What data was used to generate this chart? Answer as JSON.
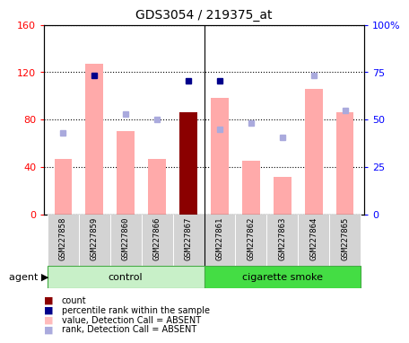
{
  "title": "GDS3054 / 219375_at",
  "samples": [
    "GSM227858",
    "GSM227859",
    "GSM227860",
    "GSM227866",
    "GSM227867",
    "GSM227861",
    "GSM227862",
    "GSM227863",
    "GSM227864",
    "GSM227865"
  ],
  "bar_values": [
    47,
    127,
    70,
    47,
    86,
    98,
    45,
    32,
    106,
    86
  ],
  "bar_colors": [
    "#ffaaaa",
    "#ffaaaa",
    "#ffaaaa",
    "#ffaaaa",
    "#8b0000",
    "#ffaaaa",
    "#ffaaaa",
    "#ffaaaa",
    "#ffaaaa",
    "#ffaaaa"
  ],
  "rank_dots": [
    null,
    117,
    null,
    null,
    113,
    113,
    null,
    null,
    null,
    null
  ],
  "rank_dot_color": "#00008b",
  "absent_ranks": [
    69,
    null,
    85,
    80,
    null,
    72,
    77,
    65,
    117,
    88
  ],
  "absent_rank_color": "#aaaadd",
  "ylim_left": [
    0,
    160
  ],
  "ylim_right": [
    0,
    100
  ],
  "yticks_left": [
    0,
    40,
    80,
    120,
    160
  ],
  "ytick_labels_left": [
    "0",
    "40",
    "80",
    "120",
    "160"
  ],
  "ytick_labels_right": [
    "0",
    "25",
    "50",
    "75",
    "100%"
  ],
  "control_color": "#c8f0c8",
  "smoke_color": "#44dd44",
  "legend_items": [
    {
      "label": "count",
      "color": "#8b0000"
    },
    {
      "label": "percentile rank within the sample",
      "color": "#00008b"
    },
    {
      "label": "value, Detection Call = ABSENT",
      "color": "#ffbbbb"
    },
    {
      "label": "rank, Detection Call = ABSENT",
      "color": "#aaaadd"
    }
  ]
}
